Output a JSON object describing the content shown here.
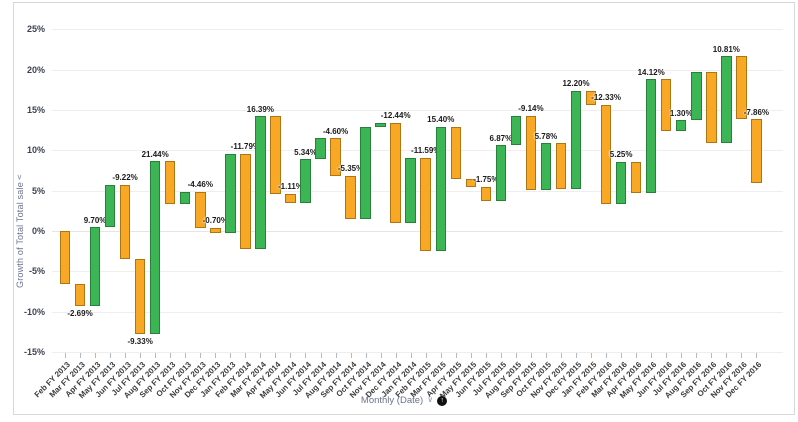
{
  "colors": {
    "increase_fill": "#3CB554",
    "increase_border": "#27813A",
    "decrease_fill": "#F9A825",
    "decrease_border": "#AD7615",
    "grid": "#EFEDED",
    "axis_text": "#3D4152",
    "muted_text": "#6A7391",
    "bar_label": "#1A1A1A",
    "frame": "#D8D8D8"
  },
  "y_axis": {
    "title": "Growth of Total Total sale",
    "chevron": "∨",
    "tick_labels": [
      "25%",
      "20%",
      "15%",
      "10%",
      "5%",
      "0%",
      "-5%",
      "-10%",
      "-15%"
    ]
  },
  "x_axis": {
    "label": "Monthly (Date)",
    "chevron": "∨",
    "drill_icon": "drill-up-icon",
    "drill_glyph": "↑"
  },
  "chart_data": {
    "type": "bar",
    "subtype": "waterfall",
    "title": "",
    "xlabel": "Monthly (Date)",
    "ylabel": "Growth of Total Total sale",
    "unit": "%",
    "ylim": [
      -15,
      25
    ],
    "y_ticks": [
      25,
      20,
      15,
      10,
      5,
      0,
      -5,
      -10,
      -15
    ],
    "grid": true,
    "legend": false,
    "points": [
      {
        "category": "Feb FY 2013",
        "change": -6.55,
        "cumulative": -6.55,
        "dir": "down",
        "label": null
      },
      {
        "category": "Mar FY 2013",
        "change": -2.69,
        "cumulative": -9.24,
        "dir": "down",
        "label": "-2.69%",
        "label_pos": "below"
      },
      {
        "category": "Apr FY 2013",
        "change": 9.7,
        "cumulative": 0.46,
        "dir": "up",
        "label": "9.70%",
        "label_pos": "above"
      },
      {
        "category": "May FY 2013",
        "change": 5.3,
        "cumulative": 5.76,
        "dir": "up",
        "label": null
      },
      {
        "category": "Jun FY 2013",
        "change": -9.22,
        "cumulative": -3.46,
        "dir": "down",
        "label": "-9.22%",
        "label_pos": "above"
      },
      {
        "category": "Jul FY 2013",
        "change": -9.33,
        "cumulative": -12.79,
        "dir": "down",
        "label": "-9.33%",
        "label_pos": "below"
      },
      {
        "category": "Aug FY 2013",
        "change": 21.44,
        "cumulative": 8.65,
        "dir": "up",
        "label": "21.44%",
        "label_pos": "above"
      },
      {
        "category": "Sep FY 2013",
        "change": -5.3,
        "cumulative": 3.35,
        "dir": "down",
        "label": null
      },
      {
        "category": "Oct FY 2013",
        "change": 1.5,
        "cumulative": 4.85,
        "dir": "up",
        "label": null
      },
      {
        "category": "Nov FY 2013",
        "change": -4.46,
        "cumulative": 0.39,
        "dir": "down",
        "label": "-4.46%",
        "label_pos": "above"
      },
      {
        "category": "Dec FY 2013",
        "change": -0.7,
        "cumulative": -0.31,
        "dir": "down",
        "label": "-0.70%",
        "label_pos": "above"
      },
      {
        "category": "Jan FY 2013",
        "change": 9.9,
        "cumulative": 9.59,
        "dir": "up",
        "label": null
      },
      {
        "category": "Feb FY 2014",
        "change": -11.79,
        "cumulative": -2.2,
        "dir": "down",
        "label": "-11.79%",
        "label_pos": "above"
      },
      {
        "category": "Mar FY 2014",
        "change": 16.39,
        "cumulative": 14.19,
        "dir": "up",
        "label": "16.39%",
        "label_pos": "above"
      },
      {
        "category": "Apr FY 2014",
        "change": -9.55,
        "cumulative": 4.64,
        "dir": "down",
        "label": null
      },
      {
        "category": "May FY 2014",
        "change": -1.11,
        "cumulative": 3.53,
        "dir": "down",
        "label": "-1.11%",
        "label_pos": "above"
      },
      {
        "category": "Jun FY 2014",
        "change": 5.34,
        "cumulative": 8.87,
        "dir": "up",
        "label": "5.34%",
        "label_pos": "above"
      },
      {
        "category": "Jul FY 2014",
        "change": 2.6,
        "cumulative": 11.47,
        "dir": "up",
        "label": null
      },
      {
        "category": "Aug FY 2014",
        "change": -4.6,
        "cumulative": 6.87,
        "dir": "down",
        "label": "-4.60%",
        "label_pos": "above"
      },
      {
        "category": "Sep FY 2014",
        "change": -5.35,
        "cumulative": 1.52,
        "dir": "down",
        "label": "-5.35%",
        "label_pos": "above"
      },
      {
        "category": "Oct FY 2014",
        "change": 11.35,
        "cumulative": 12.87,
        "dir": "up",
        "label": null
      },
      {
        "category": "Nov FY 2014",
        "change": 0.55,
        "cumulative": 13.42,
        "dir": "up",
        "label": null
      },
      {
        "category": "Dec FY 2014",
        "change": -12.44,
        "cumulative": 0.98,
        "dir": "down",
        "label": "-12.44%",
        "label_pos": "above"
      },
      {
        "category": "Jan FY 2014",
        "change": 8.1,
        "cumulative": 9.08,
        "dir": "up",
        "label": null
      },
      {
        "category": "Feb FY 2015",
        "change": -11.59,
        "cumulative": -2.51,
        "dir": "down",
        "label": "-11.59%",
        "label_pos": "above"
      },
      {
        "category": "Mar FY 2015",
        "change": 15.4,
        "cumulative": 12.89,
        "dir": "up",
        "label": "15.40%",
        "label_pos": "above"
      },
      {
        "category": "Apr FY 2015",
        "change": -6.4,
        "cumulative": 6.49,
        "dir": "down",
        "label": null
      },
      {
        "category": "May FY 2015",
        "change": -1.0,
        "cumulative": 5.49,
        "dir": "down",
        "label": null
      },
      {
        "category": "Jun FY 2015",
        "change": -1.75,
        "cumulative": 3.74,
        "dir": "down",
        "label": "-1.75%",
        "label_pos": "above"
      },
      {
        "category": "Jul FY 2015",
        "change": 6.87,
        "cumulative": 10.61,
        "dir": "up",
        "label": "6.87%",
        "label_pos": "above"
      },
      {
        "category": "Aug FY 2015",
        "change": 3.65,
        "cumulative": 14.26,
        "dir": "up",
        "label": null
      },
      {
        "category": "Sep FY 2015",
        "change": -9.14,
        "cumulative": 5.12,
        "dir": "down",
        "label": "-9.14%",
        "label_pos": "above"
      },
      {
        "category": "Oct FY 2015",
        "change": 5.78,
        "cumulative": 10.9,
        "dir": "up",
        "label": "5.78%",
        "label_pos": "above"
      },
      {
        "category": "Nov FY 2015",
        "change": -5.74,
        "cumulative": 5.16,
        "dir": "down",
        "label": null
      },
      {
        "category": "Dec FY 2015",
        "change": 12.2,
        "cumulative": 17.36,
        "dir": "up",
        "label": "12.20%",
        "label_pos": "above"
      },
      {
        "category": "Jan FY 2015",
        "change": -1.7,
        "cumulative": 15.66,
        "dir": "down",
        "label": null
      },
      {
        "category": "Feb FY 2016",
        "change": -12.33,
        "cumulative": 3.33,
        "dir": "down",
        "label": "-12.33%",
        "label_pos": "above"
      },
      {
        "category": "Mar FY 2016",
        "change": 5.25,
        "cumulative": 8.58,
        "dir": "up",
        "label": "5.25%",
        "label_pos": "above"
      },
      {
        "category": "Apr FY 2016",
        "change": -3.9,
        "cumulative": 4.68,
        "dir": "down",
        "label": null
      },
      {
        "category": "May FY 2016",
        "change": 14.12,
        "cumulative": 18.8,
        "dir": "up",
        "label": "14.12%",
        "label_pos": "above"
      },
      {
        "category": "Jun FY 2016",
        "change": -6.4,
        "cumulative": 12.4,
        "dir": "down",
        "label": null
      },
      {
        "category": "Jul FY 2016",
        "change": 1.3,
        "cumulative": 13.7,
        "dir": "up",
        "label": "1.30%",
        "label_pos": "above"
      },
      {
        "category": "Aug FY 2016",
        "change": 6.05,
        "cumulative": 19.75,
        "dir": "up",
        "label": null
      },
      {
        "category": "Sep FY 2016",
        "change": -8.9,
        "cumulative": 10.85,
        "dir": "down",
        "label": null
      },
      {
        "category": "Oct FY 2016",
        "change": 10.81,
        "cumulative": 21.66,
        "dir": "up",
        "label": "10.81%",
        "label_pos": "above"
      },
      {
        "category": "Nov FY 2016",
        "change": -7.8,
        "cumulative": 13.86,
        "dir": "down",
        "label": null
      },
      {
        "category": "Dec FY 2016",
        "change": -7.86,
        "cumulative": 6.0,
        "dir": "down",
        "label": "-7.86%",
        "label_pos": "above"
      }
    ]
  }
}
